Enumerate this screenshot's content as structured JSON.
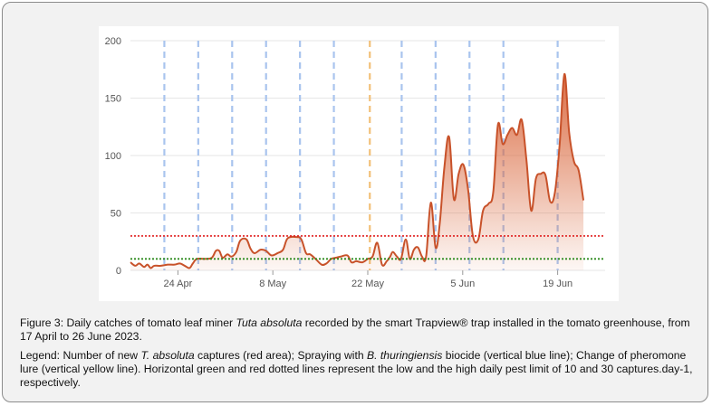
{
  "chart_data": {
    "type": "area",
    "ylim": [
      0,
      200
    ],
    "y_ticks": [
      0,
      50,
      100,
      150,
      200
    ],
    "x_ticks": [
      {
        "day": 7,
        "label": "24 Apr"
      },
      {
        "day": 21,
        "label": "8 May"
      },
      {
        "day": 35,
        "label": "22 May"
      },
      {
        "day": 49,
        "label": "5 Jun"
      },
      {
        "day": 63,
        "label": "19 Jun"
      }
    ],
    "x_range_days": [
      0,
      70
    ],
    "start_label": "17 April",
    "end_label": "26 June 2023",
    "captures": {
      "points": [
        [
          0,
          7
        ],
        [
          0.7,
          4
        ],
        [
          1.3,
          6
        ],
        [
          2,
          3
        ],
        [
          2.5,
          5
        ],
        [
          3,
          2
        ],
        [
          3.5,
          4
        ],
        [
          4.5,
          4
        ],
        [
          5.5,
          5
        ],
        [
          6.5,
          5
        ],
        [
          7.3,
          6
        ],
        [
          8,
          4
        ],
        [
          8.7,
          2
        ],
        [
          9.2,
          6
        ],
        [
          9.8,
          10
        ],
        [
          11,
          10
        ],
        [
          12,
          11
        ],
        [
          12.6,
          17
        ],
        [
          13.1,
          17
        ],
        [
          13.6,
          11
        ],
        [
          14.3,
          14
        ],
        [
          14.9,
          12
        ],
        [
          15.6,
          16
        ],
        [
          16.2,
          26
        ],
        [
          17.1,
          27
        ],
        [
          17.7,
          19
        ],
        [
          18.3,
          15
        ],
        [
          19.2,
          18
        ],
        [
          20,
          17
        ],
        [
          20.8,
          13
        ],
        [
          21.7,
          15
        ],
        [
          22.5,
          18
        ],
        [
          23.2,
          28
        ],
        [
          24.5,
          29
        ],
        [
          25.2,
          27
        ],
        [
          25.9,
          15
        ],
        [
          26.5,
          14
        ],
        [
          27.3,
          10
        ],
        [
          28.2,
          5
        ],
        [
          28.9,
          6
        ],
        [
          29.6,
          10
        ],
        [
          30.3,
          11
        ],
        [
          31,
          12
        ],
        [
          32,
          13
        ],
        [
          32.6,
          7
        ],
        [
          33.3,
          8
        ],
        [
          34.2,
          7
        ],
        [
          35,
          10
        ],
        [
          35.7,
          12
        ],
        [
          36.4,
          24
        ],
        [
          37.1,
          5
        ],
        [
          37.8,
          8
        ],
        [
          38.3,
          12
        ],
        [
          38.7,
          16
        ],
        [
          39.3,
          12
        ],
        [
          39.9,
          10
        ],
        [
          40.6,
          27
        ],
        [
          41.2,
          10
        ],
        [
          41.8,
          18
        ],
        [
          42.4,
          20
        ],
        [
          43,
          12
        ],
        [
          43.6,
          12
        ],
        [
          44.3,
          59
        ],
        [
          45,
          20
        ],
        [
          45.6,
          40
        ],
        [
          46.3,
          90
        ],
        [
          47,
          116
        ],
        [
          47.7,
          62
        ],
        [
          48.4,
          84
        ],
        [
          49.1,
          92
        ],
        [
          49.8,
          70
        ],
        [
          50.5,
          30
        ],
        [
          51.3,
          27
        ],
        [
          52,
          52
        ],
        [
          52.8,
          58
        ],
        [
          53.5,
          68
        ],
        [
          54.2,
          127
        ],
        [
          54.9,
          110
        ],
        [
          55.6,
          118
        ],
        [
          56.3,
          124
        ],
        [
          57,
          118
        ],
        [
          57.7,
          131
        ],
        [
          58.4,
          96
        ],
        [
          59.1,
          52
        ],
        [
          59.8,
          80
        ],
        [
          60.5,
          84
        ],
        [
          61.2,
          83
        ],
        [
          61.9,
          60
        ],
        [
          62.6,
          68
        ],
        [
          63.3,
          110
        ],
        [
          64,
          171
        ],
        [
          64.7,
          120
        ],
        [
          65.4,
          95
        ],
        [
          66.1,
          87
        ],
        [
          66.8,
          61
        ]
      ]
    },
    "spray_days": [
      5,
      10,
      15,
      20,
      25,
      30,
      40,
      45,
      50,
      55,
      63
    ],
    "lure_change_days": [
      35.3
    ],
    "low_limit": 10,
    "high_limit": 30,
    "colors": {
      "captures_line": "#c8522a",
      "captures_fill_top": "#d9663b",
      "spray_line": "#a9c4ee",
      "lure_line": "#f2c078",
      "low_limit": "#2e8b1f",
      "high_limit": "#e02020",
      "grid": "#e6e6e6",
      "tick_text": "#555555"
    }
  },
  "caption": {
    "figure_prefix": "Figure 3: Daily catches of tomato leaf miner ",
    "figure_species": "Tuta absoluta",
    "figure_rest": " recorded by the smart Trapview® trap installed in the tomato greenhouse, from 17 April to 26 June 2023.",
    "legend_prefix": "Legend: Number of new ",
    "legend_species": "T. absoluta",
    "legend_mid1": " captures (red area); Spraying with ",
    "legend_bt": "B. thuringiensis",
    "legend_rest": " biocide (vertical blue line); Change of pheromone lure (vertical yellow line). Horizontal green and red dotted lines represent the low and the high daily pest limit of 10 and 30 captures.day-1, respectively."
  }
}
